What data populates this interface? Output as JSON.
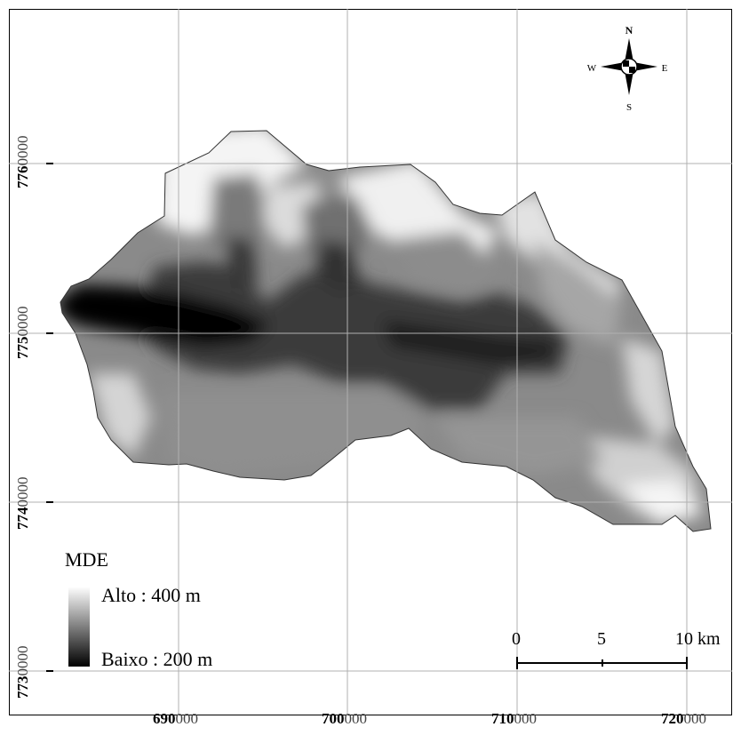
{
  "legend": {
    "title": "MDE",
    "high_label": "Alto : 400 m",
    "low_label": "Baixo : 200 m",
    "high_color": "#ffffff",
    "low_color": "#000000"
  },
  "compass": {
    "n": "N",
    "s": "S",
    "e": "E",
    "w": "W"
  },
  "scale_bar": {
    "tick_0": "0",
    "tick_1": "5",
    "tick_2": "10",
    "unit": "km"
  },
  "x_axis": {
    "ticks": [
      {
        "major": "690",
        "minor": "000"
      },
      {
        "major": "700",
        "minor": "000"
      },
      {
        "major": "710",
        "minor": "000"
      },
      {
        "major": "720",
        "minor": "000"
      }
    ]
  },
  "y_axis": {
    "ticks": [
      {
        "major": "776",
        "minor": "0000"
      },
      {
        "major": "775",
        "minor": "0000"
      },
      {
        "major": "774",
        "minor": "0000"
      },
      {
        "major": "773",
        "minor": "0000"
      }
    ]
  },
  "colors": {
    "frame": "#000000",
    "grid": "#b0b0b0",
    "outline": "#333333"
  }
}
